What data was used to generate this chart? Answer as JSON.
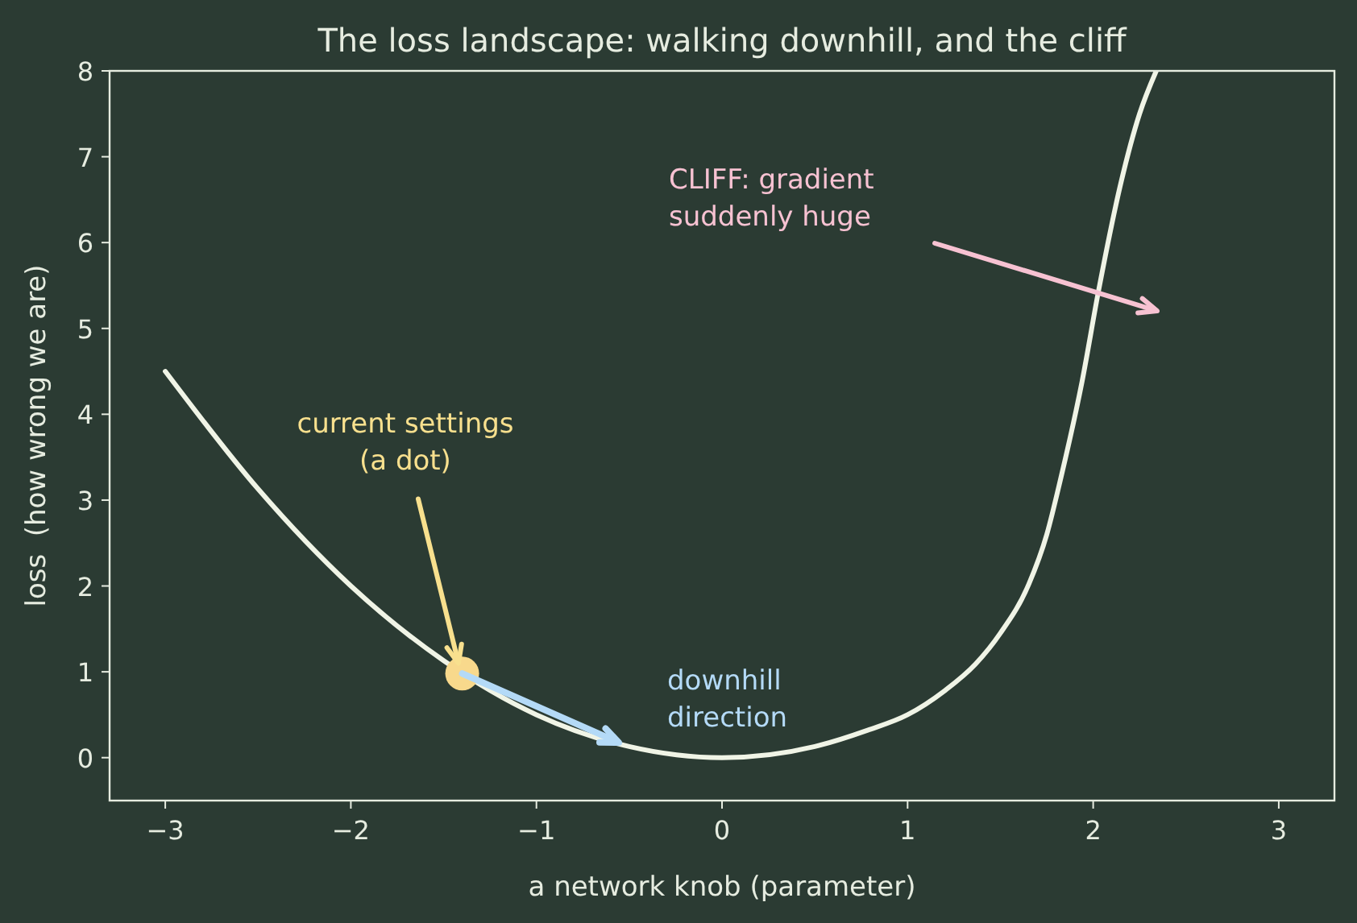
{
  "chart_data": {
    "type": "line",
    "title": "The loss landscape: walking downhill, and the cliff",
    "xlabel": "a network knob (parameter)",
    "ylabel": "loss  (how wrong we are)",
    "xlim": [
      -3.3,
      3.3
    ],
    "ylim": [
      -0.5,
      8
    ],
    "xticks": [
      {
        "value": -3,
        "label": "−3"
      },
      {
        "value": -2,
        "label": "−2"
      },
      {
        "value": -1,
        "label": "−1"
      },
      0,
      1,
      2,
      3
    ],
    "yticks": [
      0,
      1,
      2,
      3,
      4,
      5,
      6,
      7,
      8
    ],
    "grid": false,
    "line_style": "solid",
    "series": [
      {
        "color": "#f0f4e6",
        "x": [
          -3,
          -2.5,
          -2,
          -1.5,
          -1,
          -0.5,
          0,
          0.5,
          0.785,
          1,
          1.2,
          1.366,
          1.5,
          1.653,
          1.75,
          1.826,
          1.94,
          2.03,
          2.15,
          2.25,
          2.34
        ],
        "values": [
          4.5,
          3.13,
          2,
          1.13,
          0.5,
          0.13,
          0,
          0.13,
          0.32,
          0.5,
          0.78,
          1.09,
          1.45,
          2.02,
          2.6,
          3.26,
          4.38,
          5.45,
          6.7,
          7.5,
          8
        ]
      },
      {
        "type": "scatter",
        "color": "#f8d98c",
        "marker": "circle",
        "x": [
          -1.4
        ],
        "values": [
          0.98
        ]
      }
    ],
    "annotations": [
      {
        "text": "current settings\n(a dot)",
        "x": -1.42,
        "y": 1.1
      },
      "downhill\ndirection",
      "CLIFF: gradient\nsuddenly huge"
    ]
  }
}
